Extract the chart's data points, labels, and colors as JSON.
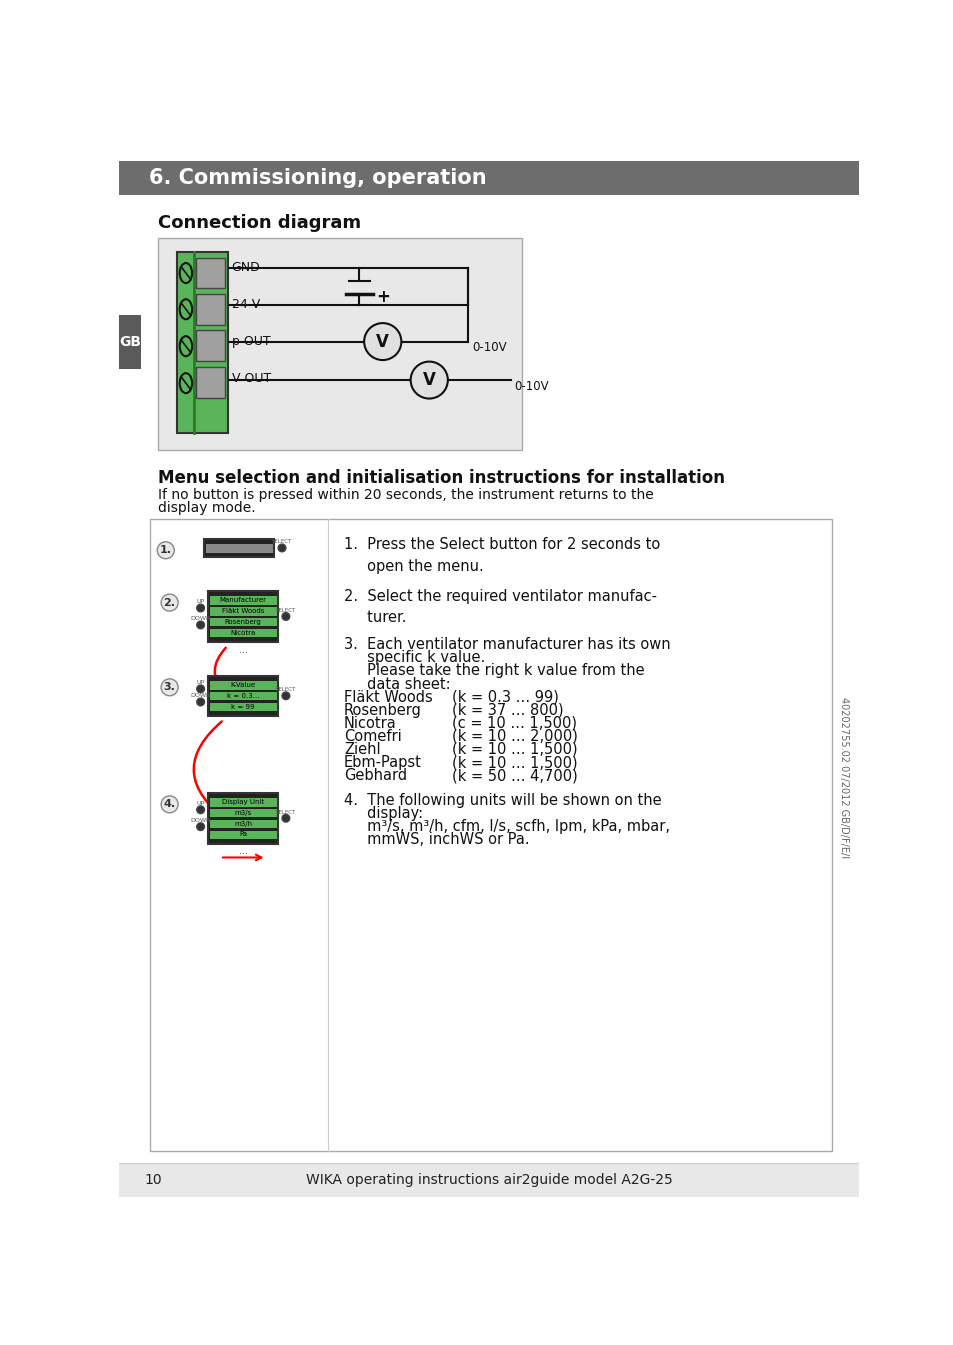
{
  "page_bg": "#ffffff",
  "header_bg": "#6d6d6d",
  "header_text": "6. Commissioning, operation",
  "header_text_color": "#ffffff",
  "header_fontsize": 15,
  "footer_bg": "#e8e8e8",
  "footer_page": "10",
  "footer_center": "WIKA operating instructions air2guide model A2G-25",
  "footer_fontsize": 10,
  "gb_label": "GB",
  "gb_bg": "#5a5a5a",
  "gb_text_color": "#ffffff",
  "section1_title": "Connection diagram",
  "section1_title_fontsize": 13,
  "section2_title": "Menu selection and initialisation instructions for installation",
  "section2_title_fontsize": 12,
  "section2_body1": "If no button is pressed within 20 seconds, the instrument returns to the",
  "section2_body2": "display mode.",
  "section2_body_fontsize": 10,
  "diagram_bg": "#e8e8e8",
  "connector_green": "#5ab55a",
  "connector_gray": "#a0a0a0",
  "steps_fontsize": 10.5,
  "side_text": "40202755.02 07/2012 GB/D/F/E/I",
  "step1_text": "1.  Press the Select button for 2 seconds to\n     open the menu.",
  "step2_text": "2.  Select the required ventilator manufac-\n     turer.",
  "step3_line1": "3.  Each ventilator manufacturer has its own",
  "step3_line2": "     specific k value.",
  "step3_line3": "     Please take the right k value from the",
  "step3_line4": "     data sheet:",
  "step3_vendors": [
    [
      "Fläkt Woods",
      "(k = 0.3 … 99)"
    ],
    [
      "Rosenberg",
      "(k = 37 … 800)"
    ],
    [
      "Nicotra",
      "(c = 10 … 1,500)"
    ],
    [
      "Comefri",
      "(k = 10 … 2,000)"
    ],
    [
      "Ziehl",
      "(k = 10 … 1,500)"
    ],
    [
      "Ebm-Papst",
      "(k = 10 … 1,500)"
    ],
    [
      "Gebhard",
      "(k = 50 … 4,700)"
    ]
  ],
  "step4_line1": "4.  The following units will be shown on the",
  "step4_line2": "     display:",
  "step4_line3": "     m³/s, m³/h, cfm, l/s, scfh, lpm, kPa, mbar,",
  "step4_line4": "     mmWS, inchWS or Pa."
}
